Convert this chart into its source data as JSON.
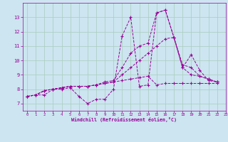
{
  "xlabel": "Windchill (Refroidissement éolien,°C)",
  "background_color": "#cce5f0",
  "grid_color": "#aaccbb",
  "line_color": "#990099",
  "xlim": [
    -0.5,
    23
  ],
  "ylim": [
    6.5,
    14.0
  ],
  "xticks": [
    0,
    1,
    2,
    3,
    4,
    5,
    6,
    7,
    8,
    9,
    10,
    11,
    12,
    13,
    14,
    15,
    16,
    17,
    18,
    19,
    20,
    21,
    22,
    23
  ],
  "yticks": [
    7,
    8,
    9,
    10,
    11,
    12,
    13
  ],
  "series": [
    [
      7.5,
      7.6,
      7.6,
      8.0,
      8.0,
      8.1,
      7.5,
      7.0,
      7.3,
      7.3,
      8.0,
      11.7,
      13.0,
      8.2,
      8.3,
      13.3,
      13.5,
      11.6,
      9.5,
      10.4,
      9.3,
      8.6,
      8.5
    ],
    [
      7.5,
      7.6,
      7.9,
      8.0,
      8.1,
      8.2,
      8.2,
      8.2,
      8.3,
      8.4,
      8.5,
      9.0,
      9.5,
      10.0,
      10.5,
      11.0,
      11.5,
      11.6,
      9.5,
      9.0,
      8.9,
      8.7,
      8.5
    ],
    [
      7.5,
      7.6,
      7.9,
      8.0,
      8.1,
      8.2,
      8.2,
      8.2,
      8.3,
      8.5,
      8.6,
      9.5,
      10.5,
      11.0,
      11.2,
      13.3,
      13.5,
      11.6,
      9.7,
      9.5,
      8.9,
      8.7,
      8.5
    ],
    [
      7.5,
      7.6,
      7.9,
      8.0,
      8.1,
      8.2,
      8.2,
      8.2,
      8.3,
      8.4,
      8.5,
      8.6,
      8.7,
      8.8,
      8.9,
      8.3,
      8.4,
      8.4,
      8.4,
      8.4,
      8.4,
      8.4,
      8.4
    ]
  ]
}
